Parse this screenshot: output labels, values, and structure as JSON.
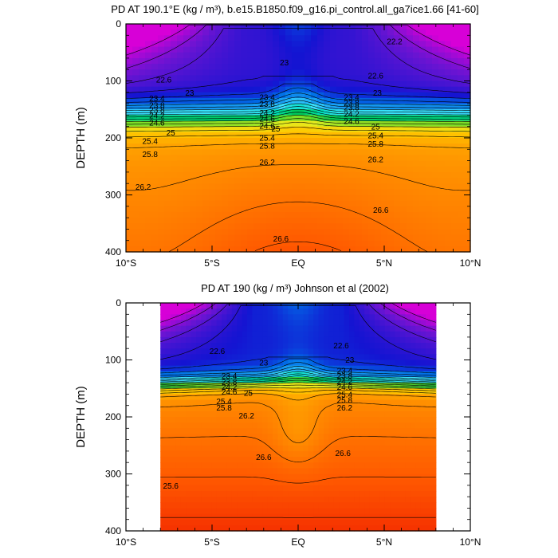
{
  "chart_data": [
    {
      "type": "contour",
      "title": "PD AT 190.1°E (kg / m³), b.e15.B1850.f09_g16.pi_control.all_ga7ice1.66 [41-60]",
      "ylabel": "DEPTH (m)",
      "xlabel": "",
      "xlim": [
        -10,
        10
      ],
      "ylim": [
        400,
        0
      ],
      "x_ticks": [
        -10,
        -5,
        0,
        5,
        10
      ],
      "x_tick_labels": [
        "10°S",
        "5°S",
        "EQ",
        "5°N",
        "10°N"
      ],
      "y_ticks": [
        0,
        100,
        200,
        300,
        400
      ],
      "y_tick_labels": [
        "0",
        "100",
        "200",
        "300",
        "400"
      ],
      "data_range_x": [
        -10,
        10
      ],
      "contour_levels": [
        21.6,
        21.8,
        22.0,
        22.2,
        22.4,
        22.6,
        22.8,
        23.0,
        23.2,
        23.4,
        23.6,
        23.8,
        24.0,
        24.2,
        24.4,
        24.6,
        24.8,
        25.0,
        25.2,
        25.4,
        25.6,
        25.8,
        26.0,
        26.2,
        26.4,
        26.6,
        26.8
      ],
      "contour_labels": [
        {
          "text": "22.2",
          "x": 5.6,
          "y": 30
        },
        {
          "text": "23",
          "x": -0.8,
          "y": 67
        },
        {
          "text": "22.6",
          "x": -7.8,
          "y": 97
        },
        {
          "text": "22.6",
          "x": 4.5,
          "y": 90
        },
        {
          "text": "23",
          "x": -6.3,
          "y": 120
        },
        {
          "text": "23",
          "x": 4.6,
          "y": 120
        },
        {
          "text": "23.4",
          "x": -8.2,
          "y": 130
        },
        {
          "text": "23.8",
          "x": -8.2,
          "y": 142
        },
        {
          "text": "23.8",
          "x": -8.2,
          "y": 150
        },
        {
          "text": "24.2",
          "x": -8.2,
          "y": 160
        },
        {
          "text": "24.6",
          "x": -8.2,
          "y": 173
        },
        {
          "text": "25",
          "x": -7.4,
          "y": 190
        },
        {
          "text": "25.4",
          "x": -8.6,
          "y": 205
        },
        {
          "text": "25.8",
          "x": -8.6,
          "y": 228
        },
        {
          "text": "26.2",
          "x": -9.0,
          "y": 285
        },
        {
          "text": "23.4",
          "x": -1.8,
          "y": 128
        },
        {
          "text": "23.8",
          "x": -1.8,
          "y": 140
        },
        {
          "text": "24.2",
          "x": -1.8,
          "y": 155
        },
        {
          "text": "24.6",
          "x": -1.8,
          "y": 166
        },
        {
          "text": "24.6",
          "x": -1.8,
          "y": 178
        },
        {
          "text": "25",
          "x": -1.3,
          "y": 183
        },
        {
          "text": "25.4",
          "x": -1.8,
          "y": 199
        },
        {
          "text": "25.8",
          "x": -1.8,
          "y": 213
        },
        {
          "text": "26.2",
          "x": -1.8,
          "y": 242
        },
        {
          "text": "26.6",
          "x": -1.0,
          "y": 376
        },
        {
          "text": "23.4",
          "x": 3.1,
          "y": 128
        },
        {
          "text": "23.8",
          "x": 3.1,
          "y": 138
        },
        {
          "text": "23.8",
          "x": 3.1,
          "y": 146
        },
        {
          "text": "24.2",
          "x": 3.1,
          "y": 157
        },
        {
          "text": "24.6",
          "x": 3.1,
          "y": 170
        },
        {
          "text": "25",
          "x": 4.5,
          "y": 180
        },
        {
          "text": "25.4",
          "x": 4.5,
          "y": 195
        },
        {
          "text": "25.8",
          "x": 4.5,
          "y": 210
        },
        {
          "text": "26.2",
          "x": 4.5,
          "y": 237
        },
        {
          "text": "26.6",
          "x": 4.8,
          "y": 326
        }
      ]
    },
    {
      "type": "contour",
      "title": "PD AT 190 (kg / m³) Johnson et al (2002)",
      "ylabel": "DEPTH (m)",
      "xlabel": "",
      "xlim": [
        -10,
        10
      ],
      "ylim": [
        400,
        0
      ],
      "x_ticks": [
        -10,
        -5,
        0,
        5,
        10
      ],
      "x_tick_labels": [
        "10°S",
        "5°S",
        "EQ",
        "5°N",
        "10°N"
      ],
      "y_ticks": [
        0,
        100,
        200,
        300,
        400
      ],
      "y_tick_labels": [
        "0",
        "100",
        "200",
        "300",
        "400"
      ],
      "data_range_x": [
        -8,
        8
      ],
      "contour_levels": [
        21.6,
        21.8,
        22.0,
        22.2,
        22.4,
        22.6,
        22.8,
        23.0,
        23.2,
        23.4,
        23.6,
        23.8,
        24.0,
        24.2,
        24.4,
        24.6,
        24.8,
        25.0,
        25.2,
        25.4,
        25.6,
        25.8,
        26.0,
        26.2,
        26.4,
        26.6,
        26.8
      ],
      "contour_labels": [
        {
          "text": "22.6",
          "x": -4.7,
          "y": 84
        },
        {
          "text": "22.6",
          "x": 2.5,
          "y": 74
        },
        {
          "text": "23",
          "x": -2.0,
          "y": 104
        },
        {
          "text": "23",
          "x": 3.0,
          "y": 99
        },
        {
          "text": "23.4",
          "x": -4.0,
          "y": 127
        },
        {
          "text": "23.8",
          "x": -4.0,
          "y": 138
        },
        {
          "text": "24.2",
          "x": -4.0,
          "y": 147
        },
        {
          "text": "24.6",
          "x": -4.0,
          "y": 155
        },
        {
          "text": "25",
          "x": -2.9,
          "y": 157
        },
        {
          "text": "25.4",
          "x": -4.3,
          "y": 172
        },
        {
          "text": "25.8",
          "x": -4.3,
          "y": 183
        },
        {
          "text": "26.2",
          "x": -3.0,
          "y": 197
        },
        {
          "text": "23.4",
          "x": 2.7,
          "y": 118
        },
        {
          "text": "23.8",
          "x": 2.7,
          "y": 127
        },
        {
          "text": "24.2",
          "x": 2.7,
          "y": 137
        },
        {
          "text": "24.6",
          "x": 2.7,
          "y": 147
        },
        {
          "text": "25.4",
          "x": 2.7,
          "y": 160
        },
        {
          "text": "25.8",
          "x": 2.7,
          "y": 170
        },
        {
          "text": "26.2",
          "x": 2.7,
          "y": 183
        },
        {
          "text": "26.6",
          "x": -2.0,
          "y": 270
        },
        {
          "text": "26.6",
          "x": 2.6,
          "y": 263
        },
        {
          "text": "25.6",
          "x": -7.4,
          "y": 320
        }
      ]
    }
  ]
}
